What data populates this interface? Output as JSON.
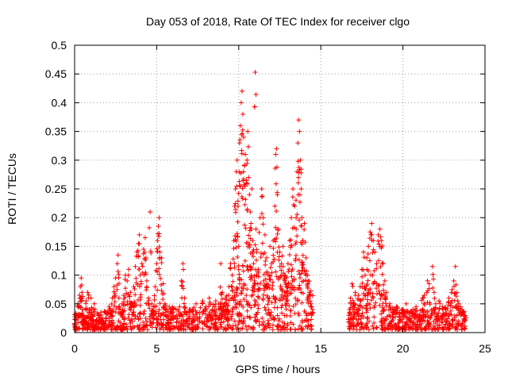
{
  "chart_data": {
    "type": "scatter",
    "title": "Day 053 of 2018, Rate Of TEC Index for receiver clgo",
    "xlabel": "GPS time / hours",
    "ylabel": "ROTI / TECUs",
    "xlim": [
      0,
      25
    ],
    "ylim": [
      0,
      0.5
    ],
    "x_ticks": [
      "0",
      "5",
      "10",
      "15",
      "20",
      "25"
    ],
    "y_ticks": [
      "0",
      "0.05",
      "0.1",
      "0.15",
      "0.2",
      "0.25",
      "0.3",
      "0.35",
      "0.4",
      "0.45",
      "0.5"
    ],
    "grid": true,
    "marker": "+",
    "color": "#ff0000",
    "series": [
      {
        "points": [
          [
            0.0,
            0.015
          ],
          [
            0.1,
            0.03
          ],
          [
            0.2,
            0.05
          ],
          [
            0.3,
            0.065
          ],
          [
            0.35,
            0.08
          ],
          [
            0.4,
            0.095
          ],
          [
            0.45,
            0.07
          ],
          [
            0.5,
            0.04
          ],
          [
            0.6,
            0.025
          ],
          [
            0.7,
            0.055
          ],
          [
            0.8,
            0.07
          ],
          [
            0.9,
            0.04
          ],
          [
            1.0,
            0.06
          ],
          [
            1.1,
            0.03
          ],
          [
            1.2,
            0.05
          ],
          [
            1.3,
            0.02
          ],
          [
            1.5,
            0.03
          ],
          [
            1.7,
            0.025
          ],
          [
            1.9,
            0.035
          ],
          [
            2.1,
            0.045
          ],
          [
            2.3,
            0.06
          ],
          [
            2.4,
            0.08
          ],
          [
            2.5,
            0.095
          ],
          [
            2.6,
            0.12
          ],
          [
            2.65,
            0.135
          ],
          [
            2.7,
            0.06
          ],
          [
            2.8,
            0.04
          ],
          [
            2.9,
            0.05
          ],
          [
            3.0,
            0.065
          ],
          [
            3.1,
            0.1
          ],
          [
            3.2,
            0.09
          ],
          [
            3.3,
            0.11
          ],
          [
            3.4,
            0.07
          ],
          [
            3.5,
            0.05
          ],
          [
            3.6,
            0.08
          ],
          [
            3.7,
            0.115
          ],
          [
            3.8,
            0.14
          ],
          [
            3.9,
            0.155
          ],
          [
            3.95,
            0.17
          ],
          [
            4.0,
            0.1
          ],
          [
            4.1,
            0.12
          ],
          [
            4.2,
            0.145
          ],
          [
            4.3,
            0.165
          ],
          [
            4.35,
            0.13
          ],
          [
            4.4,
            0.09
          ],
          [
            4.5,
            0.06
          ],
          [
            4.6,
            0.21
          ],
          [
            4.7,
            0.05
          ],
          [
            4.8,
            0.045
          ],
          [
            4.9,
            0.08
          ],
          [
            5.0,
            0.12
          ],
          [
            5.05,
            0.16
          ],
          [
            5.1,
            0.185
          ],
          [
            5.15,
            0.2
          ],
          [
            5.2,
            0.14
          ],
          [
            5.3,
            0.13
          ],
          [
            5.4,
            0.085
          ],
          [
            5.5,
            0.05
          ],
          [
            5.6,
            0.04
          ],
          [
            5.7,
            0.03
          ],
          [
            5.9,
            0.035
          ],
          [
            6.0,
            0.04
          ],
          [
            6.2,
            0.03
          ],
          [
            6.4,
            0.045
          ],
          [
            6.5,
            0.09
          ],
          [
            6.6,
            0.12
          ],
          [
            6.7,
            0.06
          ],
          [
            6.8,
            0.035
          ],
          [
            7.0,
            0.04
          ],
          [
            7.2,
            0.025
          ],
          [
            7.4,
            0.05
          ],
          [
            7.6,
            0.035
          ],
          [
            7.8,
            0.055
          ],
          [
            8.0,
            0.045
          ],
          [
            8.2,
            0.06
          ],
          [
            8.4,
            0.04
          ],
          [
            8.6,
            0.055
          ],
          [
            8.8,
            0.04
          ],
          [
            8.9,
            0.12
          ],
          [
            9.0,
            0.07
          ],
          [
            9.1,
            0.05
          ],
          [
            9.2,
            0.06
          ],
          [
            9.3,
            0.04
          ],
          [
            9.4,
            0.08
          ],
          [
            9.5,
            0.12
          ],
          [
            9.6,
            0.1
          ],
          [
            9.7,
            0.16
          ],
          [
            9.75,
            0.22
          ],
          [
            9.8,
            0.25
          ],
          [
            9.85,
            0.28
          ],
          [
            9.9,
            0.3
          ],
          [
            9.95,
            0.22
          ],
          [
            10.0,
            0.15
          ],
          [
            10.05,
            0.33
          ],
          [
            10.1,
            0.36
          ],
          [
            10.15,
            0.4
          ],
          [
            10.2,
            0.42
          ],
          [
            10.25,
            0.38
          ],
          [
            10.3,
            0.34
          ],
          [
            10.35,
            0.29
          ],
          [
            10.4,
            0.31
          ],
          [
            10.45,
            0.26
          ],
          [
            10.5,
            0.3
          ],
          [
            10.55,
            0.35
          ],
          [
            10.6,
            0.27
          ],
          [
            10.65,
            0.24
          ],
          [
            10.7,
            0.21
          ],
          [
            10.75,
            0.19
          ],
          [
            10.8,
            0.25
          ],
          [
            10.85,
            0.16
          ],
          [
            10.9,
            0.12
          ],
          [
            10.95,
            0.09
          ],
          [
            11.0,
            0.453
          ],
          [
            11.05,
            0.18
          ],
          [
            11.1,
            0.14
          ],
          [
            11.2,
            0.11
          ],
          [
            11.3,
            0.2
          ],
          [
            11.4,
            0.25
          ],
          [
            11.5,
            0.2
          ],
          [
            11.6,
            0.17
          ],
          [
            11.7,
            0.13
          ],
          [
            11.8,
            0.1
          ],
          [
            11.9,
            0.15
          ],
          [
            12.0,
            0.12
          ],
          [
            12.1,
            0.16
          ],
          [
            12.2,
            0.22
          ],
          [
            12.25,
            0.31
          ],
          [
            12.3,
            0.32
          ],
          [
            12.35,
            0.24
          ],
          [
            12.4,
            0.18
          ],
          [
            12.5,
            0.14
          ],
          [
            12.6,
            0.12
          ],
          [
            12.7,
            0.15
          ],
          [
            12.8,
            0.1
          ],
          [
            12.9,
            0.08
          ],
          [
            13.0,
            0.12
          ],
          [
            13.1,
            0.16
          ],
          [
            13.2,
            0.2
          ],
          [
            13.3,
            0.25
          ],
          [
            13.4,
            0.22
          ],
          [
            13.5,
            0.18
          ],
          [
            13.55,
            0.28
          ],
          [
            13.6,
            0.33
          ],
          [
            13.65,
            0.37
          ],
          [
            13.7,
            0.35
          ],
          [
            13.75,
            0.3
          ],
          [
            13.8,
            0.25
          ],
          [
            13.85,
            0.2
          ],
          [
            13.9,
            0.16
          ],
          [
            14.0,
            0.19
          ],
          [
            14.1,
            0.13
          ],
          [
            14.2,
            0.1
          ],
          [
            14.3,
            0.07
          ],
          [
            14.4,
            0.05
          ],
          [
            14.5,
            0.04
          ],
          [
            16.7,
            0.03
          ],
          [
            16.8,
            0.06
          ],
          [
            16.9,
            0.085
          ],
          [
            17.0,
            0.05
          ],
          [
            17.1,
            0.07
          ],
          [
            17.2,
            0.04
          ],
          [
            17.3,
            0.065
          ],
          [
            17.4,
            0.08
          ],
          [
            17.5,
            0.11
          ],
          [
            17.6,
            0.14
          ],
          [
            17.7,
            0.1
          ],
          [
            17.8,
            0.13
          ],
          [
            17.9,
            0.15
          ],
          [
            18.0,
            0.175
          ],
          [
            18.1,
            0.19
          ],
          [
            18.2,
            0.16
          ],
          [
            18.3,
            0.14
          ],
          [
            18.4,
            0.12
          ],
          [
            18.5,
            0.17
          ],
          [
            18.6,
            0.18
          ],
          [
            18.7,
            0.16
          ],
          [
            18.8,
            0.12
          ],
          [
            18.9,
            0.09
          ],
          [
            19.0,
            0.07
          ],
          [
            19.2,
            0.05
          ],
          [
            19.4,
            0.04
          ],
          [
            19.6,
            0.045
          ],
          [
            19.8,
            0.035
          ],
          [
            20.0,
            0.04
          ],
          [
            20.2,
            0.05
          ],
          [
            20.4,
            0.035
          ],
          [
            20.6,
            0.04
          ],
          [
            20.8,
            0.045
          ],
          [
            21.0,
            0.03
          ],
          [
            21.2,
            0.06
          ],
          [
            21.3,
            0.065
          ],
          [
            21.5,
            0.09
          ],
          [
            21.6,
            0.085
          ],
          [
            21.8,
            0.115
          ],
          [
            21.9,
            0.07
          ],
          [
            22.0,
            0.05
          ],
          [
            22.2,
            0.055
          ],
          [
            22.4,
            0.045
          ],
          [
            22.6,
            0.04
          ],
          [
            22.8,
            0.06
          ],
          [
            23.0,
            0.075
          ],
          [
            23.1,
            0.09
          ],
          [
            23.2,
            0.115
          ],
          [
            23.3,
            0.07
          ],
          [
            23.4,
            0.05
          ],
          [
            23.5,
            0.045
          ],
          [
            23.6,
            0.04
          ],
          [
            23.7,
            0.035
          ],
          [
            23.8,
            0.03
          ]
        ],
        "dense_band": [
          {
            "x": [
              0.0,
              14.5
            ],
            "y_max": [
              [
                0.0,
                0.03
              ],
              [
                1.0,
                0.035
              ],
              [
                2.0,
                0.035
              ],
              [
                3.0,
                0.045
              ],
              [
                4.0,
                0.055
              ],
              [
                5.0,
                0.05
              ],
              [
                6.0,
                0.04
              ],
              [
                7.0,
                0.04
              ],
              [
                8.0,
                0.045
              ],
              [
                9.0,
                0.05
              ],
              [
                9.5,
                0.07
              ],
              [
                10.0,
                0.1
              ],
              [
                10.5,
                0.13
              ],
              [
                11.0,
                0.11
              ],
              [
                12.0,
                0.1
              ],
              [
                13.0,
                0.11
              ],
              [
                13.5,
                0.13
              ],
              [
                14.0,
                0.12
              ],
              [
                14.5,
                0.06
              ]
            ]
          },
          {
            "x": [
              16.7,
              23.8
            ],
            "y_max": [
              [
                16.7,
                0.04
              ],
              [
                17.5,
                0.06
              ],
              [
                18.0,
                0.09
              ],
              [
                18.5,
                0.1
              ],
              [
                19.0,
                0.05
              ],
              [
                20.0,
                0.035
              ],
              [
                21.0,
                0.035
              ],
              [
                22.0,
                0.04
              ],
              [
                23.0,
                0.045
              ],
              [
                23.8,
                0.035
              ]
            ]
          }
        ]
      }
    ]
  }
}
